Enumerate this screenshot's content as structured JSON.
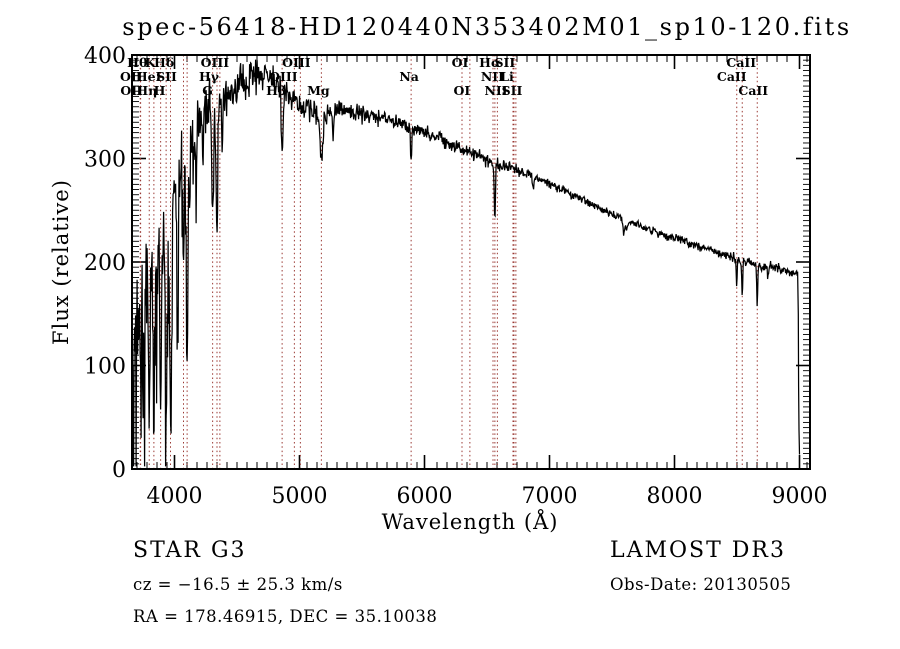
{
  "title": "spec-56418-HD120440N353402M01_sp10-120.fits",
  "colors": {
    "background": "#ffffff",
    "spectrum": "#000000",
    "line_marker": "#9b3a34",
    "text": "#000000"
  },
  "annotations": {
    "class_line": "STAR    G3",
    "cz_line": "cz = −16.5 ± 25.3 km/s",
    "radec_line": "RA = 178.46915, DEC =  35.10038",
    "survey": "LAMOST DR3",
    "obs_date": "Obs-Date: 20130505"
  },
  "chart_data": {
    "type": "line",
    "title": "spec-56418-HD120440N353402M01_sp10-120.fits",
    "xlabel": "Wavelength (Å)",
    "ylabel": "Flux (relative)",
    "xlim": [
      3660,
      9084
    ],
    "ylim": [
      0,
      400
    ],
    "xticks": [
      4000,
      5000,
      6000,
      7000,
      8000,
      9000
    ],
    "yticks": [
      0,
      100,
      200,
      300,
      400
    ],
    "x_minor_step": 80,
    "y_minor_step": 5,
    "grid": false,
    "legend": false,
    "noise_seed": 1234567,
    "continuum": [
      [
        3665,
        120
      ],
      [
        3700,
        135
      ],
      [
        3740,
        150
      ],
      [
        3780,
        165
      ],
      [
        3820,
        175
      ],
      [
        3860,
        190
      ],
      [
        3900,
        205
      ],
      [
        3950,
        225
      ],
      [
        4000,
        248
      ],
      [
        4050,
        278
      ],
      [
        4100,
        295
      ],
      [
        4150,
        318
      ],
      [
        4200,
        338
      ],
      [
        4260,
        348
      ],
      [
        4320,
        345
      ],
      [
        4400,
        358
      ],
      [
        4470,
        368
      ],
      [
        4550,
        372
      ],
      [
        4620,
        380
      ],
      [
        4700,
        382
      ],
      [
        4760,
        378
      ],
      [
        4820,
        372
      ],
      [
        4880,
        362
      ],
      [
        4940,
        358
      ],
      [
        5000,
        352
      ],
      [
        5080,
        348
      ],
      [
        5175,
        336
      ],
      [
        5250,
        344
      ],
      [
        5320,
        346
      ],
      [
        5400,
        345
      ],
      [
        5500,
        342
      ],
      [
        5600,
        340
      ],
      [
        5700,
        337
      ],
      [
        5800,
        334
      ],
      [
        5900,
        330
      ],
      [
        6000,
        327
      ],
      [
        6100,
        321
      ],
      [
        6200,
        315
      ],
      [
        6300,
        309
      ],
      [
        6400,
        304
      ],
      [
        6500,
        299
      ],
      [
        6600,
        294
      ],
      [
        6700,
        291
      ],
      [
        6800,
        287
      ],
      [
        6900,
        281
      ],
      [
        7000,
        276
      ],
      [
        7100,
        270
      ],
      [
        7200,
        264
      ],
      [
        7300,
        258
      ],
      [
        7400,
        252
      ],
      [
        7500,
        246
      ],
      [
        7600,
        241
      ],
      [
        7700,
        236
      ],
      [
        7800,
        231
      ],
      [
        7900,
        227
      ],
      [
        8000,
        223
      ],
      [
        8100,
        219
      ],
      [
        8200,
        215
      ],
      [
        8300,
        211
      ],
      [
        8400,
        207
      ],
      [
        8500,
        203
      ],
      [
        8600,
        199
      ],
      [
        8700,
        196
      ],
      [
        8800,
        194
      ],
      [
        8870,
        192
      ],
      [
        8940,
        190
      ],
      [
        8985,
        188
      ]
    ],
    "noise_profile": [
      [
        3665,
        115
      ],
      [
        3800,
        112
      ],
      [
        3900,
        100
      ],
      [
        3990,
        88
      ],
      [
        4080,
        66
      ],
      [
        4200,
        44
      ],
      [
        4350,
        30
      ],
      [
        4500,
        25
      ],
      [
        4700,
        23
      ],
      [
        5000,
        19
      ],
      [
        5400,
        14
      ],
      [
        5800,
        11
      ],
      [
        6200,
        10
      ],
      [
        6600,
        9
      ],
      [
        7000,
        7
      ],
      [
        7600,
        6
      ],
      [
        8200,
        6.5
      ],
      [
        8800,
        7.5
      ],
      [
        9005,
        8
      ]
    ],
    "absorption_features": [
      [
        3726,
        60,
        4
      ],
      [
        3750,
        80,
        5
      ],
      [
        3798,
        140,
        5
      ],
      [
        3835,
        150,
        5
      ],
      [
        3889,
        160,
        5
      ],
      [
        3933,
        200,
        6
      ],
      [
        3968,
        195,
        6
      ],
      [
        4026,
        90,
        5
      ],
      [
        4072,
        80,
        5
      ],
      [
        4101,
        210,
        6
      ],
      [
        4173,
        60,
        5
      ],
      [
        4227,
        45,
        4
      ],
      [
        4305,
        95,
        8
      ],
      [
        4340,
        128,
        6
      ],
      [
        4384,
        50,
        5
      ],
      [
        4861,
        56,
        7
      ],
      [
        5175,
        40,
        11
      ],
      [
        5270,
        18,
        6
      ],
      [
        5893,
        32,
        5
      ],
      [
        6300,
        8,
        4
      ],
      [
        6563,
        54,
        5
      ],
      [
        6870,
        10,
        6
      ],
      [
        7594,
        14,
        8
      ],
      [
        7620,
        10,
        6
      ],
      [
        8498,
        28,
        4
      ],
      [
        8542,
        36,
        4
      ],
      [
        8662,
        40,
        4
      ],
      [
        8750,
        10,
        5
      ]
    ],
    "end_drop": [
      [
        8990,
        150
      ],
      [
        8993,
        80
      ],
      [
        8996,
        38
      ],
      [
        9000,
        14
      ]
    ],
    "marked_lines": [
      {
        "label": "Hθ",
        "wavelength": 3798,
        "row": 1,
        "dx": -12
      },
      {
        "label": "K",
        "wavelength": 3933,
        "row": 1,
        "dx": -16
      },
      {
        "label": "Hδ",
        "wavelength": 4101,
        "row": 1,
        "dx": -23
      },
      {
        "label": "OIII",
        "wavelength": 4363,
        "row": 1,
        "dx": -5
      },
      {
        "label": "OIII",
        "wavelength": 5007,
        "row": 1,
        "dx": -4
      },
      {
        "label": "OI",
        "wavelength": 6300,
        "row": 1,
        "dx": -2
      },
      {
        "label": "Hα",
        "wavelength": 6563,
        "row": 1,
        "dx": -5
      },
      {
        "label": "SII",
        "wavelength": 6731,
        "row": 1,
        "dx": -11
      },
      {
        "label": "CaII",
        "wavelength": 8542,
        "row": 1,
        "dx": -1
      },
      {
        "label": "OII",
        "wavelength": 3726,
        "row": 2,
        "dx": -9
      },
      {
        "label": "HeI",
        "wavelength": 3889,
        "row": 2,
        "dx": -12
      },
      {
        "label": "SII",
        "wavelength": 4072,
        "row": 2,
        "dx": -17
      },
      {
        "label": "Hγ",
        "wavelength": 4340,
        "row": 2,
        "dx": -8
      },
      {
        "label": "OIII",
        "wavelength": 4959,
        "row": 2,
        "dx": -11
      },
      {
        "label": "Na",
        "wavelength": 5893,
        "row": 2,
        "dx": -2
      },
      {
        "label": "NII",
        "wavelength": 6583,
        "row": 2,
        "dx": -5
      },
      {
        "label": "Li",
        "wavelength": 6708,
        "row": 2,
        "dx": -6
      },
      {
        "label": "CaII",
        "wavelength": 8498,
        "row": 2,
        "dx": -5
      },
      {
        "label": "OII",
        "wavelength": 3729,
        "row": 3,
        "dx": -9
      },
      {
        "label": "Hη",
        "wavelength": 3835,
        "row": 3,
        "dx": -7
      },
      {
        "label": "H",
        "wavelength": 3968,
        "row": 3,
        "dx": -11
      },
      {
        "label": "G",
        "wavelength": 4305,
        "row": 3,
        "dx": -5
      },
      {
        "label": "Hβ",
        "wavelength": 4861,
        "row": 3,
        "dx": -6
      },
      {
        "label": "Mg",
        "wavelength": 5175,
        "row": 3,
        "dx": -3
      },
      {
        "label": "OI",
        "wavelength": 6363,
        "row": 3,
        "dx": -8
      },
      {
        "label": "NII",
        "wavelength": 6548,
        "row": 3,
        "dx": 3
      },
      {
        "label": "SII",
        "wavelength": 6716,
        "row": 3,
        "dx": -2
      },
      {
        "label": "CaII",
        "wavelength": 8662,
        "row": 3,
        "dx": -4
      }
    ]
  }
}
